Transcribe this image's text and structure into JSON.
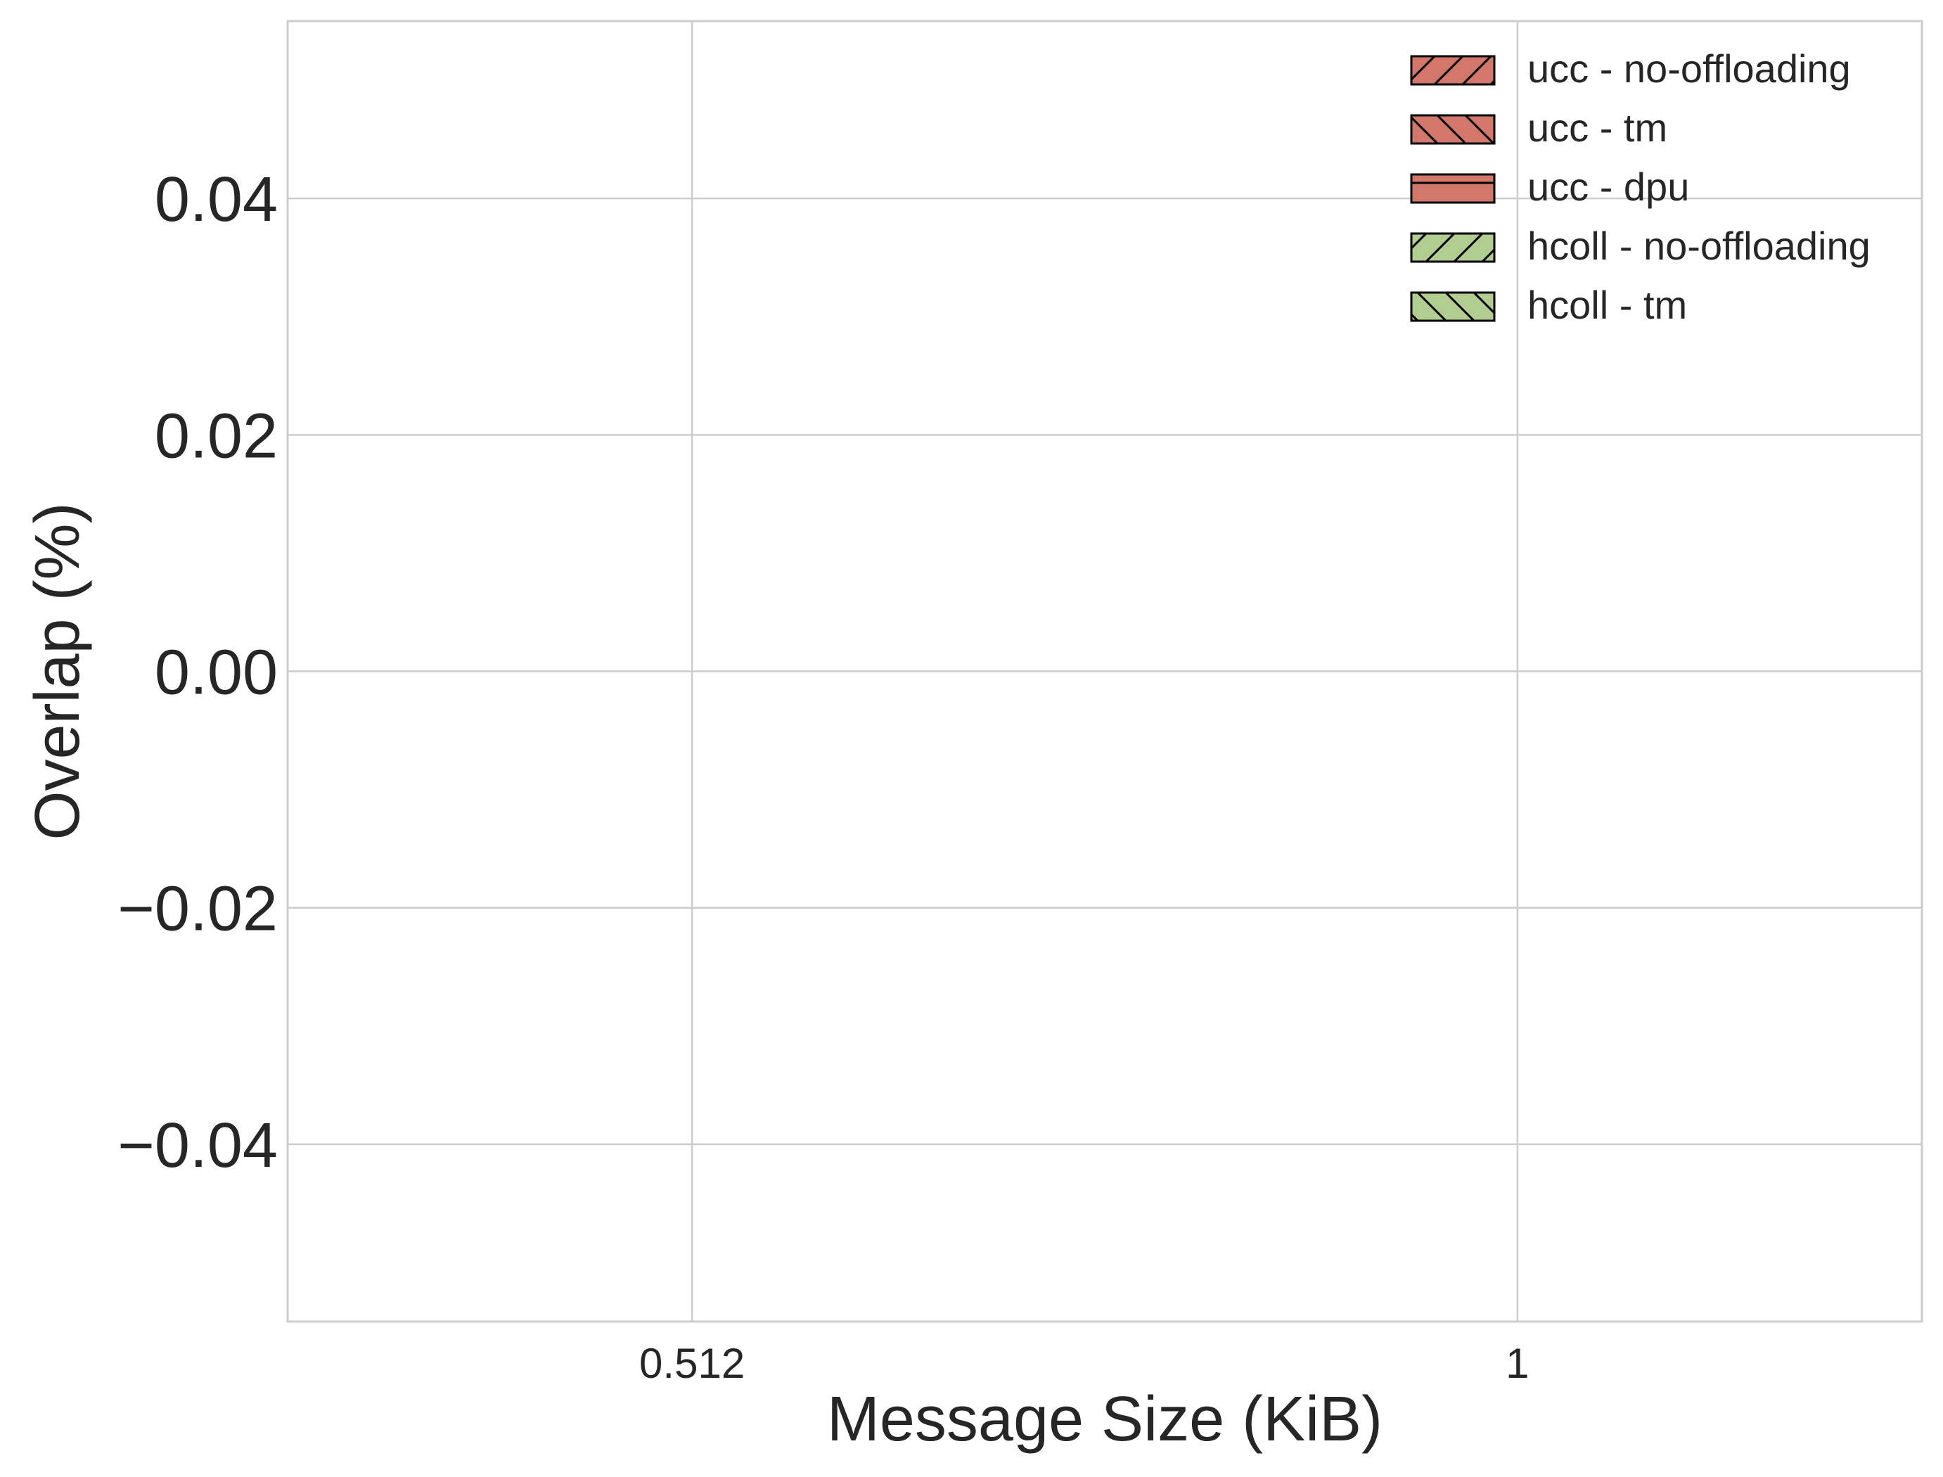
{
  "chart_data": {
    "type": "bar",
    "title": "",
    "xlabel": "Message Size (KiB)",
    "ylabel": "Overlap (%)",
    "categories": [
      "0.512",
      "1"
    ],
    "ylim": [
      -0.055,
      0.055
    ],
    "yticks": [
      -0.04,
      -0.02,
      0.0,
      0.02,
      0.04
    ],
    "ytick_labels": [
      "−0.04",
      "−0.02",
      "0.00",
      "0.02",
      "0.04"
    ],
    "grid": true,
    "legend_position": "top-right",
    "series": [
      {
        "name": "ucc - no-offloading",
        "values": [
          0,
          0
        ],
        "color": "#d4776b",
        "hatch": "slash"
      },
      {
        "name": "ucc - tm",
        "values": [
          0,
          0
        ],
        "color": "#d4776b",
        "hatch": "backslash"
      },
      {
        "name": "ucc - dpu",
        "values": [
          0,
          0
        ],
        "color": "#d4776b",
        "hatch": "horizontal"
      },
      {
        "name": "hcoll - no-offloading",
        "values": [
          0,
          0
        ],
        "color": "#b2cd90",
        "hatch": "slash"
      },
      {
        "name": "hcoll - tm",
        "values": [
          0,
          0
        ],
        "color": "#b2cd90",
        "hatch": "backslash"
      }
    ]
  },
  "colors": {
    "grid": "#cccccc",
    "axes_edge": "#cccccc",
    "text": "#262626",
    "bar_edge": "#000000"
  }
}
